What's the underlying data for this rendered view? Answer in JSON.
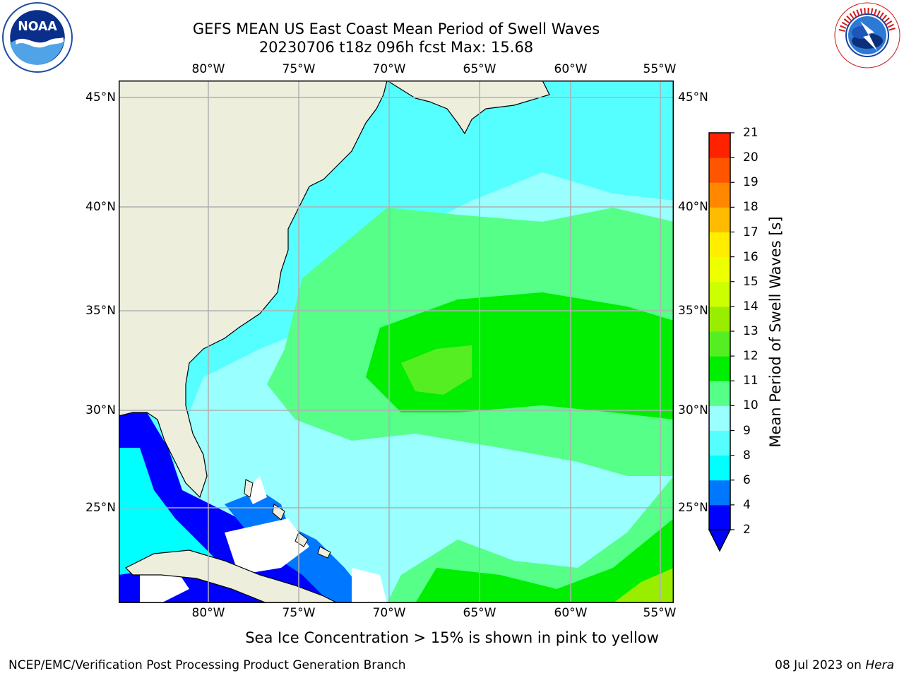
{
  "header": {
    "title_line1": "GEFS MEAN US East Coast Mean Period of Swell Waves",
    "title_line2": "20230706 t18z 096h fcst   Max: 15.68"
  },
  "logos": {
    "left": {
      "icon": "noaa-logo",
      "text": "NOAA"
    },
    "right": {
      "icon": "nws-logo"
    }
  },
  "map": {
    "lon_labels": [
      "80°W",
      "75°W",
      "70°W",
      "65°W",
      "60°W",
      "55°W"
    ],
    "lat_labels": [
      "45°N",
      "40°N",
      "35°N",
      "30°N",
      "25°N"
    ],
    "land_color": "#eeeedd",
    "grid_color": "#b0b0b0"
  },
  "colorbar": {
    "label": "Mean Period of Swell Waves [s]",
    "ticks": [
      "2",
      "4",
      "6",
      "8",
      "9",
      "10",
      "11",
      "12",
      "13",
      "14",
      "15",
      "16",
      "17",
      "18",
      "19",
      "20",
      "21"
    ],
    "colors": [
      "#0000ff",
      "#0077ff",
      "#00ffff",
      "#55ffff",
      "#99ffff",
      "#55ff88",
      "#00ee00",
      "#55ee22",
      "#99ee00",
      "#ccff00",
      "#eeff00",
      "#ffee00",
      "#ffbb00",
      "#ff8800",
      "#ff5500",
      "#ff2200",
      "#ff0000"
    ]
  },
  "notes": {
    "ice": "Sea Ice Concentration > 15% is shown in pink to yellow"
  },
  "footer": {
    "left": "NCEP/EMC/Verification Post Processing Product Generation Branch",
    "date": "08 Jul 2023 on ",
    "machine": "Hera"
  }
}
